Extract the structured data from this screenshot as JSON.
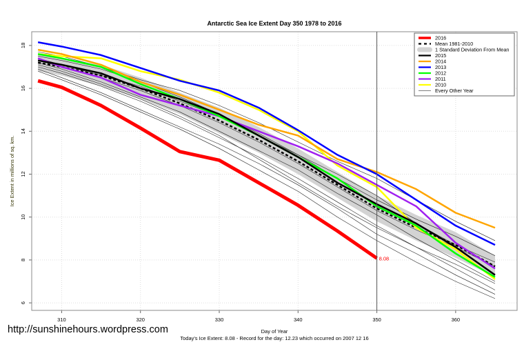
{
  "chart_data": {
    "type": "line",
    "title": "Antarctic Sea Ice Extent Day 350 1978 to 2016",
    "xlabel": "Day of Year",
    "ylabel": "Ice Extent in millions of sq. km.",
    "subtitle": "Today's Ice Extent: 8.08  - Record for the day: 12.23 which occurred on 2007 12 16",
    "xlim": [
      306.2,
      367.8
    ],
    "ylim": [
      5.65,
      18.64
    ],
    "xticks": [
      "310",
      "320",
      "330",
      "340",
      "350",
      "360"
    ],
    "yticks": [
      "6",
      "8",
      "10",
      "12",
      "14",
      "16",
      "18"
    ],
    "grid": true,
    "legend_position": "top-right",
    "marker_day": 350,
    "marker_label": "8.08",
    "x": [
      307,
      310,
      315,
      320,
      325,
      330,
      335,
      340,
      345,
      350,
      355,
      360,
      365
    ],
    "sd_band": {
      "name": "1 Standard Deviation From Mean",
      "lower": [
        16.8,
        16.6,
        16.1,
        15.5,
        14.8,
        13.9,
        13.0,
        12.0,
        10.9,
        9.8,
        8.9,
        8.1,
        7.2
      ],
      "upper": [
        17.6,
        17.4,
        17.1,
        16.5,
        15.8,
        15.1,
        14.2,
        13.2,
        12.1,
        11.0,
        10.1,
        9.3,
        8.2
      ]
    },
    "other_years": {
      "name": "Every Other Year",
      "lines": [
        [
          17.0,
          16.7,
          16.1,
          15.4,
          14.6,
          13.7,
          12.8,
          11.8,
          10.7,
          9.6,
          8.6,
          7.6,
          6.6
        ],
        [
          17.5,
          17.3,
          16.9,
          16.3,
          15.6,
          14.8,
          13.9,
          12.9,
          11.8,
          10.8,
          9.9,
          9.1,
          8.2
        ],
        [
          16.9,
          16.5,
          15.8,
          15.0,
          14.2,
          13.4,
          12.5,
          11.5,
          10.4,
          9.2,
          8.3,
          7.3,
          6.4
        ],
        [
          17.3,
          17.0,
          16.5,
          15.9,
          15.2,
          14.4,
          13.5,
          12.5,
          11.4,
          10.3,
          9.4,
          8.6,
          7.7
        ],
        [
          17.7,
          17.5,
          17.0,
          16.4,
          15.9,
          15.2,
          14.4,
          13.5,
          12.6,
          11.8,
          10.8,
          9.8,
          8.9
        ],
        [
          16.8,
          16.4,
          15.7,
          14.9,
          14.1,
          13.2,
          12.2,
          11.2,
          10.0,
          8.9,
          7.9,
          7.0,
          6.2
        ],
        [
          17.2,
          16.9,
          16.3,
          15.6,
          14.9,
          14.0,
          13.1,
          12.2,
          11.1,
          10.1,
          9.0,
          8.0,
          7.0
        ],
        [
          17.4,
          17.1,
          16.6,
          16.1,
          15.4,
          14.7,
          13.8,
          12.9,
          12.0,
          11.0,
          9.7,
          8.7,
          7.9
        ],
        [
          17.1,
          16.8,
          16.2,
          15.5,
          14.7,
          13.8,
          12.7,
          11.6,
          10.5,
          9.5,
          8.6,
          7.8,
          6.9
        ]
      ]
    },
    "series": [
      {
        "name": "Mean 1981-2010",
        "color": "#000000",
        "dashed": true,
        "values": [
          17.2,
          17.0,
          16.6,
          16.0,
          15.3,
          14.5,
          13.6,
          12.6,
          11.5,
          10.4,
          9.5,
          8.7,
          7.7
        ]
      },
      {
        "name": "2010",
        "color": "#ffff00",
        "values": [
          17.6,
          17.5,
          17.4,
          16.8,
          16.4,
          15.8,
          15.0,
          14.0,
          12.4,
          11.4,
          9.5,
          8.5,
          7.1
        ]
      },
      {
        "name": "2011",
        "color": "#a020f0",
        "values": [
          17.4,
          17.0,
          16.5,
          15.7,
          15.2,
          14.7,
          14.0,
          13.3,
          12.5,
          11.5,
          10.5,
          8.8,
          7.6
        ]
      },
      {
        "name": "2012",
        "color": "#00ff00",
        "values": [
          17.6,
          17.4,
          17.0,
          16.2,
          15.5,
          14.7,
          13.8,
          12.8,
          11.8,
          10.5,
          9.6,
          8.3,
          7.2
        ]
      },
      {
        "name": "2015",
        "color": "#000000",
        "values": [
          17.3,
          17.1,
          16.7,
          16.0,
          15.5,
          14.8,
          13.8,
          12.8,
          11.6,
          10.6,
          9.7,
          8.6,
          7.3
        ]
      },
      {
        "name": "2014",
        "color": "#ffa500",
        "values": [
          17.8,
          17.6,
          17.1,
          16.3,
          15.7,
          15.0,
          14.3,
          13.8,
          12.7,
          12.1,
          11.3,
          10.2,
          9.5
        ]
      },
      {
        "name": "2013",
        "color": "#0000ff",
        "values": [
          18.15,
          17.95,
          17.55,
          16.95,
          16.35,
          15.9,
          15.1,
          14.05,
          12.9,
          12.0,
          10.8,
          9.6,
          8.7
        ]
      },
      {
        "name": "2016",
        "color": "#ff0000",
        "values": [
          16.35,
          16.05,
          15.2,
          14.15,
          13.05,
          12.65,
          11.6,
          10.55,
          9.35,
          8.08,
          null,
          null,
          null
        ]
      }
    ],
    "legend": [
      {
        "label": "2016",
        "color": "#ff0000",
        "style": "thick"
      },
      {
        "label": "Mean 1981-2010",
        "color": "#000000",
        "style": "dashed"
      },
      {
        "label": "1 Standard Deviation From Mean",
        "color": "#d3d3d3",
        "style": "band"
      },
      {
        "label": "2015",
        "color": "#000000",
        "style": "line"
      },
      {
        "label": "2014",
        "color": "#ffa500",
        "style": "line"
      },
      {
        "label": "2013",
        "color": "#0000ff",
        "style": "line"
      },
      {
        "label": "2012",
        "color": "#00ff00",
        "style": "line"
      },
      {
        "label": "2011",
        "color": "#a020f0",
        "style": "line"
      },
      {
        "label": "2010",
        "color": "#ffff00",
        "style": "line"
      },
      {
        "label": "Every Other Year",
        "color": "#555555",
        "style": "thin"
      }
    ]
  },
  "watermark": "http://sunshinehours.wordpress.com"
}
